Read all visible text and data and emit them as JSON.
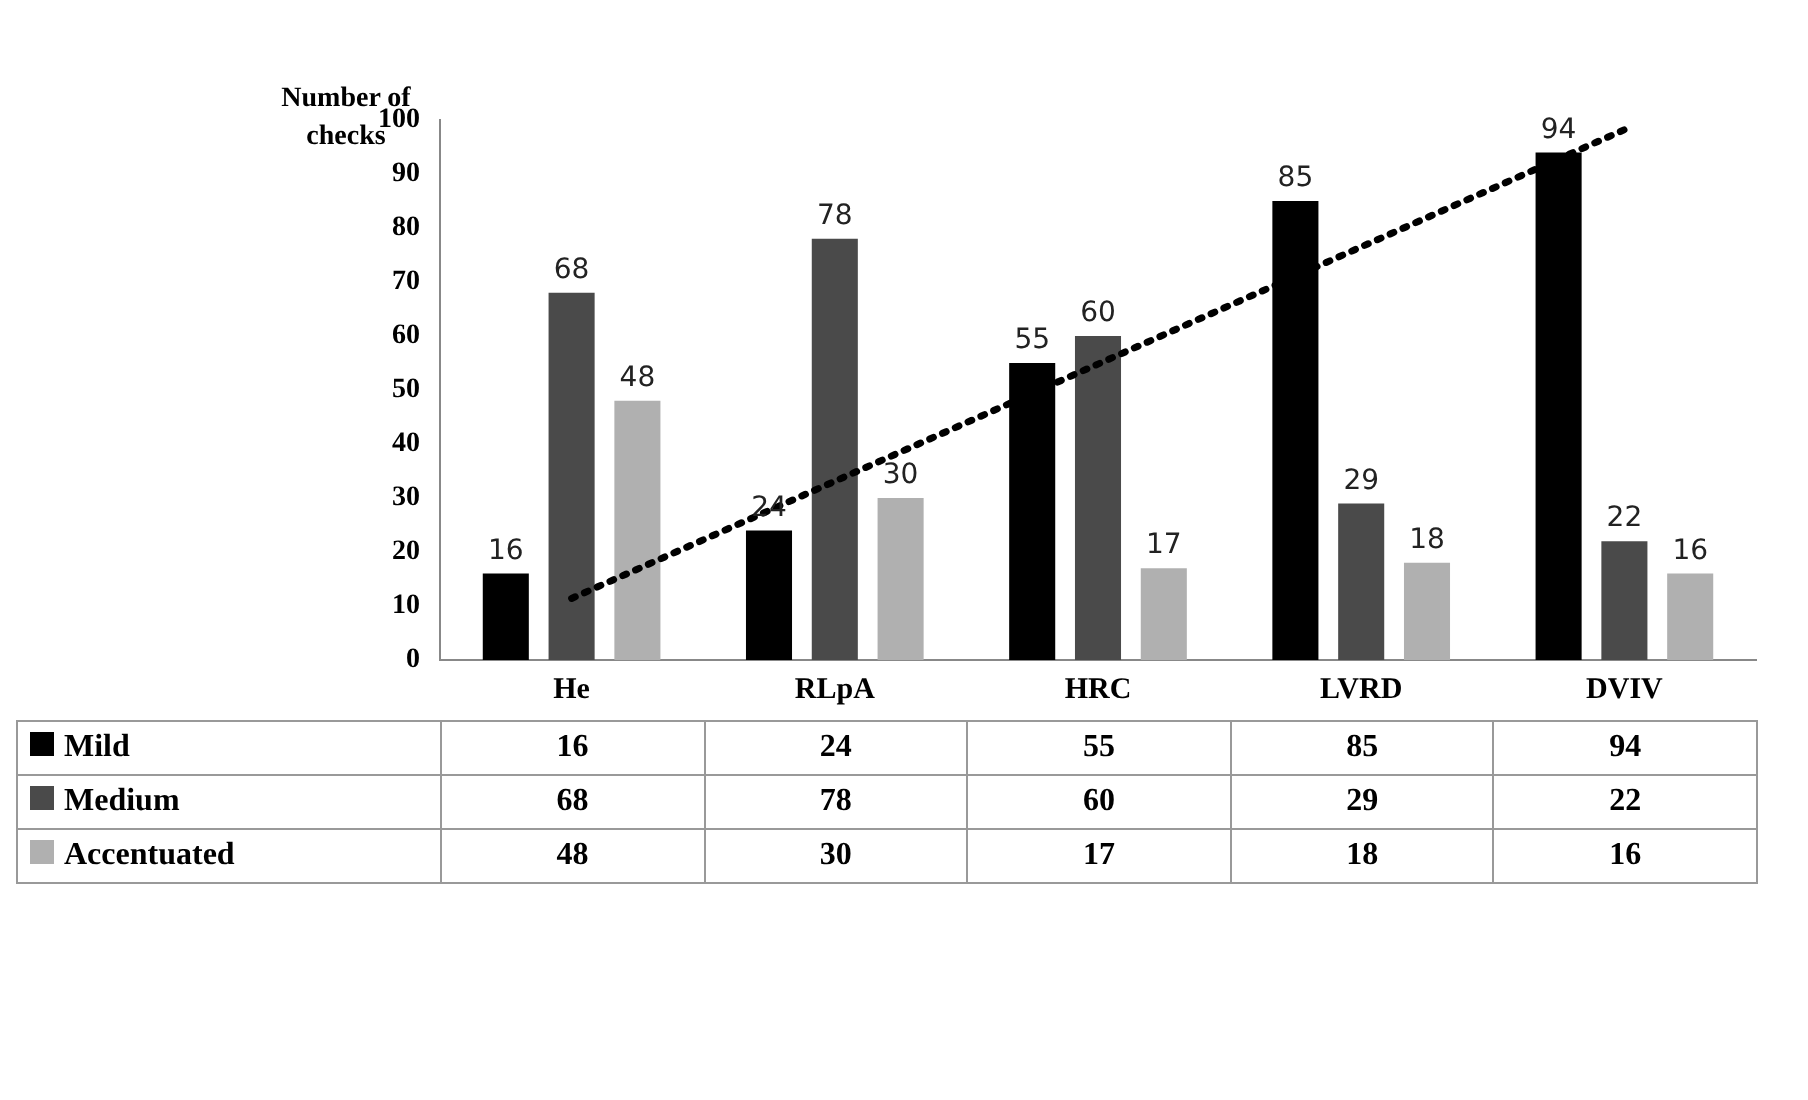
{
  "chart_data": {
    "type": "bar",
    "ylabel": "Number of checks",
    "categories": [
      "He",
      "RLpA",
      "HRC",
      "LVRD",
      "DVIV"
    ],
    "series": [
      {
        "name": "Mild",
        "color": "#000000",
        "values": [
          16,
          24,
          55,
          85,
          94
        ],
        "value_labels": [
          "16",
          "24",
          "55",
          "85",
          "94"
        ]
      },
      {
        "name": "Medium",
        "color": "#4a4a4a",
        "values": [
          68,
          78,
          60,
          29,
          22
        ],
        "value_labels": [
          "68",
          "78",
          "60",
          "29",
          "22"
        ]
      },
      {
        "name": "Accentuated",
        "color": "#b0b0b0",
        "values": [
          48,
          30,
          17,
          18,
          16
        ],
        "value_labels": [
          "48",
          "30",
          "17",
          "18",
          "16"
        ]
      },
      {
        "type": "line",
        "color": "#000000",
        "line_style": "dotted",
        "x": [
          "He",
          "RLpA",
          "HRC",
          "LVRD",
          "DVIV"
        ],
        "values": [
          11.4,
          33.1,
          54.8,
          76.5,
          98.2
        ]
      }
    ],
    "ylim": [
      0,
      100
    ],
    "yticks": [
      0,
      10,
      20,
      30,
      40,
      50,
      60,
      70,
      80,
      90,
      100
    ],
    "grid": false,
    "legend": "bottom"
  }
}
